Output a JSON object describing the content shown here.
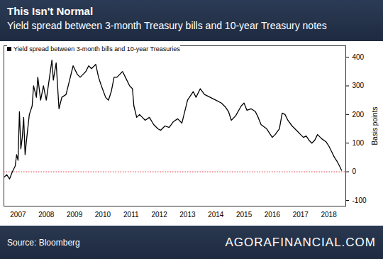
{
  "chart_data": {
    "type": "line",
    "title": "This Isn't Normal",
    "subtitle": "Yield spread between 3-month Treasury bills and 10-year Treasury notes",
    "source": "Source: Bloomberg",
    "watermark": "AGORAFINANCIAL.COM",
    "y_label": "Basis points",
    "legend": "top-left",
    "grid": false,
    "xlim": [
      2007,
      2019.1
    ],
    "xticks": [
      {
        "value": 2007.5,
        "label": "2007"
      },
      {
        "value": 2008.5,
        "label": "2008"
      },
      {
        "value": 2009.5,
        "label": "2009"
      },
      {
        "value": 2010.5,
        "label": "2010"
      },
      {
        "value": 2011.5,
        "label": "2011"
      },
      {
        "value": 2012.5,
        "label": "2012"
      },
      {
        "value": 2013.5,
        "label": "2013"
      },
      {
        "value": 2014.5,
        "label": "2014"
      },
      {
        "value": 2015.5,
        "label": "2015"
      },
      {
        "value": 2016.5,
        "label": "2016"
      },
      {
        "value": 2017.5,
        "label": "2017"
      },
      {
        "value": 2018.5,
        "label": "2018"
      }
    ],
    "ylim": [
      -120,
      440
    ],
    "yticks": [
      -100,
      0,
      100,
      200,
      300,
      400
    ],
    "reference_line": {
      "value": 0,
      "color": "#e0303a",
      "line_style": "dotted"
    },
    "x": [
      2007.0,
      2007.1,
      2007.2,
      2007.3,
      2007.4,
      2007.45,
      2007.5,
      2007.55,
      2007.6,
      2007.65,
      2007.7,
      2007.75,
      2007.8,
      2007.9,
      2008.0,
      2008.05,
      2008.15,
      2008.2,
      2008.3,
      2008.4,
      2008.5,
      2008.6,
      2008.7,
      2008.75,
      2008.85,
      2008.95,
      2009.05,
      2009.2,
      2009.35,
      2009.45,
      2009.6,
      2009.7,
      2009.8,
      2009.9,
      2010.0,
      2010.1,
      2010.25,
      2010.35,
      2010.45,
      2010.6,
      2010.7,
      2010.8,
      2010.9,
      2011.0,
      2011.1,
      2011.2,
      2011.3,
      2011.45,
      2011.55,
      2011.6,
      2011.7,
      2011.8,
      2011.9,
      2012.0,
      2012.15,
      2012.3,
      2012.45,
      2012.55,
      2012.7,
      2012.85,
      2013.0,
      2013.15,
      2013.3,
      2013.4,
      2013.5,
      2013.6,
      2013.7,
      2013.8,
      2013.95,
      2014.1,
      2014.3,
      2014.5,
      2014.7,
      2014.85,
      2014.95,
      2015.05,
      2015.2,
      2015.4,
      2015.5,
      2015.6,
      2015.75,
      2015.9,
      2016.0,
      2016.1,
      2016.3,
      2016.5,
      2016.6,
      2016.75,
      2016.85,
      2016.95,
      2017.05,
      2017.2,
      2017.4,
      2017.5,
      2017.6,
      2017.7,
      2017.8,
      2017.9,
      2018.0,
      2018.1,
      2018.25,
      2018.4,
      2018.5,
      2018.6,
      2018.7,
      2018.8,
      2018.88,
      2018.95
    ],
    "series": [
      {
        "name": "Yield spread between 3-month bills and 10-year Treasuries",
        "color": "#000000",
        "values": [
          -20,
          -10,
          -25,
          0,
          20,
          60,
          40,
          210,
          80,
          120,
          190,
          60,
          110,
          200,
          230,
          300,
          260,
          330,
          250,
          300,
          250,
          320,
          390,
          320,
          380,
          220,
          260,
          270,
          330,
          370,
          340,
          330,
          340,
          350,
          370,
          360,
          375,
          330,
          300,
          260,
          250,
          280,
          330,
          330,
          340,
          350,
          330,
          300,
          290,
          230,
          190,
          200,
          190,
          180,
          190,
          165,
          150,
          145,
          160,
          155,
          175,
          185,
          170,
          210,
          250,
          265,
          280,
          260,
          290,
          270,
          260,
          250,
          240,
          225,
          210,
          180,
          195,
          230,
          240,
          215,
          220,
          210,
          190,
          165,
          150,
          120,
          130,
          150,
          205,
          200,
          180,
          160,
          140,
          130,
          120,
          125,
          110,
          100,
          110,
          130,
          115,
          105,
          90,
          70,
          50,
          35,
          20,
          5
        ]
      }
    ]
  }
}
